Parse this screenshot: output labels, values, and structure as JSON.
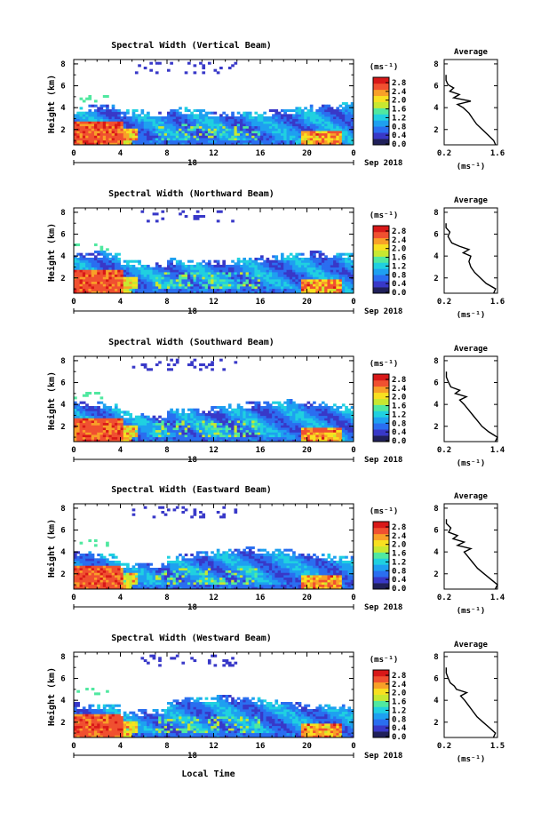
{
  "figure": {
    "xlabel": "Local Time",
    "date_label": "Sep 2018",
    "day_label": "18",
    "ylabel": "Height (km)",
    "unit_label": "(ms⁻¹)",
    "avg_title": "Average",
    "avg_xlabel": "(ms⁻¹)"
  },
  "colorbar": {
    "ticks": [
      "2.8",
      "2.4",
      "2.0",
      "1.6",
      "1.2",
      "0.8",
      "0.4",
      "0.0"
    ],
    "colors": [
      "#20205a",
      "#3838c8",
      "#2a6ef0",
      "#1ea0f0",
      "#20d0e0",
      "#50e8a0",
      "#c8e830",
      "#f8e020",
      "#f8a028",
      "#f05030",
      "#d81818"
    ]
  },
  "chart_data": [
    {
      "type": "heatmap",
      "title": "Spectral Width (Vertical Beam)",
      "x_ticks": [
        "0",
        "4",
        "8",
        "12",
        "16",
        "20",
        "0"
      ],
      "y_ticks": [
        "2",
        "4",
        "6",
        "8"
      ],
      "xlim": [
        0,
        24
      ],
      "ylim": [
        0.6,
        8.4
      ],
      "avg": {
        "type": "line",
        "x_ticks": [
          "0.2",
          "1.6"
        ],
        "xlim": [
          0.2,
          1.6
        ],
        "y_ticks": [
          "2",
          "4",
          "6",
          "8"
        ],
        "profile": [
          [
            0.6,
            1.55
          ],
          [
            1.0,
            1.5
          ],
          [
            1.5,
            1.35
          ],
          [
            2.0,
            1.2
          ],
          [
            2.5,
            1.05
          ],
          [
            3.0,
            0.95
          ],
          [
            3.5,
            0.85
          ],
          [
            4.0,
            0.7
          ],
          [
            4.3,
            0.55
          ],
          [
            4.6,
            0.9
          ],
          [
            4.9,
            0.45
          ],
          [
            5.2,
            0.6
          ],
          [
            5.5,
            0.35
          ],
          [
            5.8,
            0.45
          ],
          [
            6.1,
            0.3
          ],
          [
            6.5,
            0.25
          ],
          [
            7.0,
            0.25
          ]
        ]
      }
    },
    {
      "type": "heatmap",
      "title": "Spectral Width (Northward Beam)",
      "x_ticks": [
        "0",
        "4",
        "8",
        "12",
        "16",
        "20",
        "0"
      ],
      "y_ticks": [
        "2",
        "4",
        "6",
        "8"
      ],
      "xlim": [
        0,
        24
      ],
      "ylim": [
        0.6,
        8.4
      ],
      "avg": {
        "type": "line",
        "x_ticks": [
          "0.2",
          "1.6"
        ],
        "xlim": [
          0.2,
          1.6
        ],
        "y_ticks": [
          "2",
          "4",
          "6",
          "8"
        ],
        "profile": [
          [
            0.6,
            1.5
          ],
          [
            1.0,
            1.55
          ],
          [
            1.5,
            1.3
          ],
          [
            2.0,
            1.15
          ],
          [
            2.5,
            1.0
          ],
          [
            3.0,
            0.9
          ],
          [
            3.5,
            0.85
          ],
          [
            4.0,
            0.9
          ],
          [
            4.3,
            0.7
          ],
          [
            4.6,
            0.85
          ],
          [
            4.9,
            0.6
          ],
          [
            5.2,
            0.4
          ],
          [
            5.5,
            0.35
          ],
          [
            5.8,
            0.3
          ],
          [
            6.2,
            0.35
          ],
          [
            6.6,
            0.25
          ],
          [
            7.0,
            0.25
          ]
        ]
      }
    },
    {
      "type": "heatmap",
      "title": "Spectral Width (Southward Beam)",
      "x_ticks": [
        "0",
        "4",
        "8",
        "12",
        "16",
        "20",
        "0"
      ],
      "y_ticks": [
        "2",
        "4",
        "6",
        "8"
      ],
      "xlim": [
        0,
        24
      ],
      "ylim": [
        0.6,
        8.4
      ],
      "avg": {
        "type": "line",
        "x_ticks": [
          "0.2",
          "1.4"
        ],
        "xlim": [
          0.2,
          1.4
        ],
        "y_ticks": [
          "2",
          "4",
          "6",
          "8"
        ],
        "profile": [
          [
            0.6,
            1.35
          ],
          [
            1.0,
            1.4
          ],
          [
            1.5,
            1.2
          ],
          [
            2.0,
            1.05
          ],
          [
            2.5,
            0.95
          ],
          [
            3.0,
            0.85
          ],
          [
            3.5,
            0.75
          ],
          [
            4.0,
            0.65
          ],
          [
            4.4,
            0.55
          ],
          [
            4.7,
            0.7
          ],
          [
            5.0,
            0.45
          ],
          [
            5.3,
            0.55
          ],
          [
            5.6,
            0.35
          ],
          [
            6.0,
            0.3
          ],
          [
            6.5,
            0.25
          ],
          [
            7.0,
            0.25
          ]
        ]
      }
    },
    {
      "type": "heatmap",
      "title": "Spectral Width (Eastward Beam)",
      "x_ticks": [
        "0",
        "4",
        "8",
        "12",
        "16",
        "20",
        "0"
      ],
      "y_ticks": [
        "2",
        "4",
        "6",
        "8"
      ],
      "xlim": [
        0,
        24
      ],
      "ylim": [
        0.6,
        8.4
      ],
      "avg": {
        "type": "line",
        "x_ticks": [
          "0.2",
          "1.4"
        ],
        "xlim": [
          0.2,
          1.4
        ],
        "y_ticks": [
          "2",
          "4",
          "6",
          "8"
        ],
        "profile": [
          [
            0.6,
            1.35
          ],
          [
            1.0,
            1.4
          ],
          [
            1.5,
            1.25
          ],
          [
            2.0,
            1.1
          ],
          [
            2.5,
            0.95
          ],
          [
            3.0,
            0.85
          ],
          [
            3.5,
            0.75
          ],
          [
            4.0,
            0.65
          ],
          [
            4.3,
            0.8
          ],
          [
            4.6,
            0.5
          ],
          [
            4.9,
            0.65
          ],
          [
            5.2,
            0.4
          ],
          [
            5.5,
            0.5
          ],
          [
            5.8,
            0.3
          ],
          [
            6.2,
            0.35
          ],
          [
            6.6,
            0.25
          ],
          [
            7.0,
            0.25
          ]
        ]
      }
    },
    {
      "type": "heatmap",
      "title": "Spectral Width (Westward Beam)",
      "x_ticks": [
        "0",
        "4",
        "8",
        "12",
        "16",
        "20",
        "0"
      ],
      "y_ticks": [
        "2",
        "4",
        "6",
        "8"
      ],
      "xlim": [
        0,
        24
      ],
      "ylim": [
        0.6,
        8.4
      ],
      "avg": {
        "type": "line",
        "x_ticks": [
          "0.2",
          "1.5"
        ],
        "xlim": [
          0.2,
          1.5
        ],
        "y_ticks": [
          "2",
          "4",
          "6",
          "8"
        ],
        "profile": [
          [
            0.6,
            1.4
          ],
          [
            1.0,
            1.45
          ],
          [
            1.5,
            1.3
          ],
          [
            2.0,
            1.15
          ],
          [
            2.5,
            1.0
          ],
          [
            3.0,
            0.9
          ],
          [
            3.5,
            0.8
          ],
          [
            4.0,
            0.7
          ],
          [
            4.4,
            0.6
          ],
          [
            4.7,
            0.75
          ],
          [
            5.0,
            0.5
          ],
          [
            5.3,
            0.45
          ],
          [
            5.6,
            0.35
          ],
          [
            6.0,
            0.3
          ],
          [
            6.5,
            0.25
          ],
          [
            7.0,
            0.25
          ]
        ]
      }
    }
  ]
}
